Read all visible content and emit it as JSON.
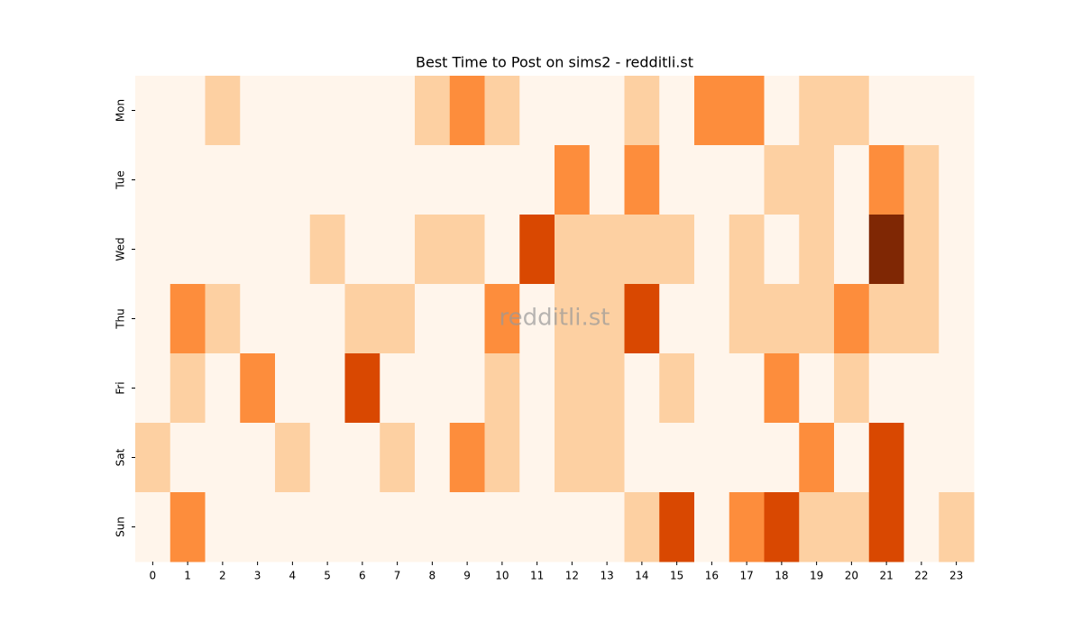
{
  "chart_data": {
    "type": "heatmap",
    "title": "Best Time to Post on sims2 - redditli.st",
    "watermark": "redditli.st",
    "x": [
      0,
      1,
      2,
      3,
      4,
      5,
      6,
      7,
      8,
      9,
      10,
      11,
      12,
      13,
      14,
      15,
      16,
      17,
      18,
      19,
      20,
      21,
      22,
      23
    ],
    "y": [
      "Mon",
      "Tue",
      "Wed",
      "Thu",
      "Fri",
      "Sat",
      "Sun"
    ],
    "colors": [
      "#fff5eb",
      "#fdd0a2",
      "#fd8d3c",
      "#d94801",
      "#7f2704"
    ],
    "values": [
      [
        0,
        0,
        1,
        0,
        0,
        0,
        0,
        0,
        1,
        2,
        1,
        0,
        0,
        0,
        1,
        0,
        2,
        2,
        0,
        1,
        1,
        0,
        0,
        0
      ],
      [
        0,
        0,
        0,
        0,
        0,
        0,
        0,
        0,
        0,
        0,
        0,
        0,
        2,
        0,
        2,
        0,
        0,
        0,
        1,
        1,
        0,
        2,
        1,
        0
      ],
      [
        0,
        0,
        0,
        0,
        0,
        1,
        0,
        0,
        1,
        1,
        0,
        3,
        1,
        1,
        1,
        1,
        0,
        1,
        0,
        1,
        0,
        4,
        1,
        0
      ],
      [
        0,
        2,
        1,
        0,
        0,
        0,
        1,
        1,
        0,
        0,
        2,
        0,
        1,
        1,
        3,
        0,
        0,
        1,
        1,
        1,
        2,
        1,
        1,
        0
      ],
      [
        0,
        1,
        0,
        2,
        0,
        0,
        3,
        0,
        0,
        0,
        1,
        0,
        1,
        1,
        0,
        1,
        0,
        0,
        2,
        0,
        1,
        0,
        0,
        0
      ],
      [
        1,
        0,
        0,
        0,
        1,
        0,
        0,
        1,
        0,
        2,
        1,
        0,
        1,
        1,
        0,
        0,
        0,
        0,
        0,
        2,
        0,
        3,
        0,
        0
      ],
      [
        0,
        2,
        0,
        0,
        0,
        0,
        0,
        0,
        0,
        0,
        0,
        0,
        0,
        0,
        1,
        3,
        0,
        2,
        3,
        1,
        1,
        3,
        0,
        1
      ]
    ]
  }
}
